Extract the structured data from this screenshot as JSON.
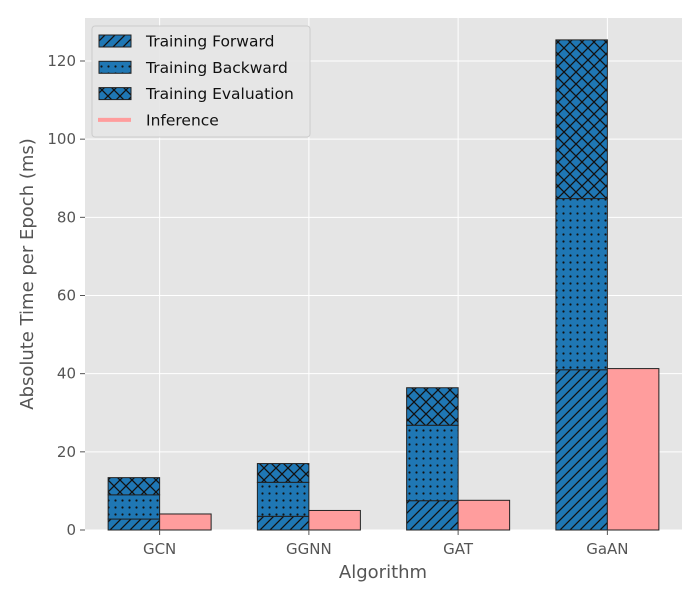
{
  "chart_data": {
    "type": "bar",
    "xlabel": "Algorithm",
    "ylabel": "Absolute Time per Epoch (ms)",
    "categories": [
      "GCN",
      "GGNN",
      "GAT",
      "GaAN"
    ],
    "ylim": [
      0,
      131
    ],
    "yticks": [
      0,
      20,
      40,
      60,
      80,
      100,
      120
    ],
    "ytick_labels": [
      "0",
      "20",
      "40",
      "60",
      "80",
      "100",
      "120"
    ],
    "grid": true,
    "legend_position": "top-left",
    "stacked_group": "Training",
    "series": [
      {
        "name": "Training Forward",
        "values": [
          2.8,
          3.5,
          7.5,
          41.0
        ],
        "hatch": "diagonal",
        "color": "#1f77b4"
      },
      {
        "name": "Training Backward",
        "values": [
          6.2,
          8.7,
          19.3,
          43.8
        ],
        "hatch": "dots",
        "color": "#1f77b4"
      },
      {
        "name": "Training Evaluation",
        "values": [
          4.4,
          4.8,
          9.6,
          40.6
        ],
        "hatch": "crosshatch",
        "color": "#1f77b4"
      },
      {
        "name": "Inference",
        "values": [
          4.1,
          5.0,
          7.6,
          41.3
        ],
        "hatch": "none",
        "color": "#ff9d9d"
      }
    ],
    "colors": {
      "background": "#e5e5e5",
      "grid": "#ffffff",
      "edge": "#222222"
    }
  }
}
